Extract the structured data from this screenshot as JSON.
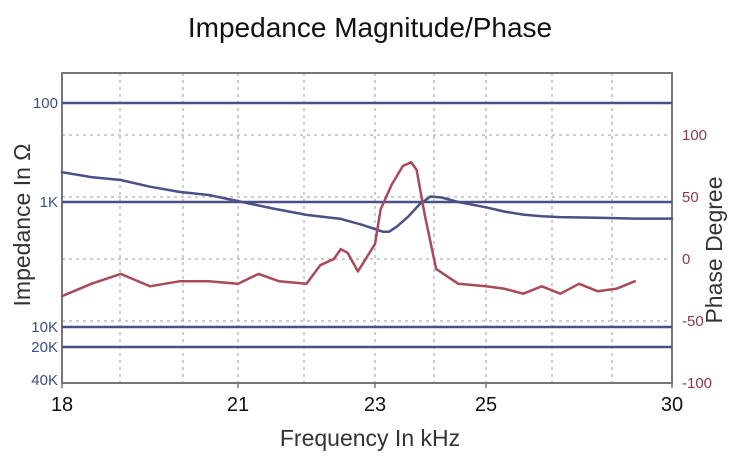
{
  "chart_data": {
    "type": "line",
    "title": "Impedance Magnitude/Phase",
    "xlabel": "Frequency In kHz",
    "ylabel_left": "Impedance In Ω",
    "ylabel_right": "Phase Degree",
    "x_ticks": [
      "18",
      "21",
      "23",
      "25",
      "30"
    ],
    "left_ticks": [
      "100",
      "1K",
      "10K",
      "20K",
      "40K"
    ],
    "right_ticks": [
      "100",
      "50",
      "0",
      "-50",
      "-100"
    ],
    "right_ylim": [
      -100,
      100
    ],
    "grid": true,
    "series": [
      {
        "axis": "left",
        "color": "#4a4f86",
        "x": [
          18,
          18.5,
          19,
          19.5,
          20,
          20.5,
          21,
          21.5,
          22,
          22.5,
          22.8,
          23,
          23.15,
          23.25,
          23.4,
          23.6,
          23.8,
          24,
          24.2,
          24.5,
          25,
          25.5,
          26,
          26.5,
          27,
          28,
          29,
          30
        ],
        "values": [
          500,
          560,
          600,
          700,
          790,
          850,
          980,
          1160,
          1350,
          1480,
          1690,
          1880,
          2000,
          2000,
          1760,
          1400,
          1060,
          880,
          900,
          1000,
          1130,
          1250,
          1340,
          1390,
          1420,
          1440,
          1470,
          1470
        ]
      },
      {
        "axis": "right",
        "color": "#a84a5a",
        "x": [
          18,
          18.5,
          19,
          19.5,
          20,
          20.5,
          21,
          21.3,
          21.6,
          22,
          22.2,
          22.4,
          22.5,
          22.6,
          22.75,
          23,
          23.1,
          23.3,
          23.5,
          23.65,
          23.75,
          23.9,
          24.1,
          24.5,
          25,
          25.5,
          26,
          26.5,
          27,
          27.5,
          28,
          28.5,
          29
        ],
        "values": [
          -30,
          -20,
          -12,
          -22,
          -18,
          -18,
          -20,
          -12,
          -18,
          -20,
          -5,
          0,
          8,
          5,
          -10,
          12,
          40,
          60,
          75,
          78,
          72,
          35,
          -8,
          -20,
          -22,
          -24,
          -28,
          -22,
          -28,
          -20,
          -26,
          -24,
          -18
        ]
      }
    ]
  }
}
